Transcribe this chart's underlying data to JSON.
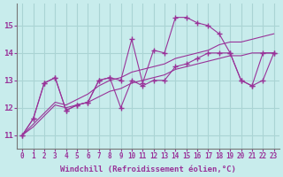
{
  "xlabel": "Windchill (Refroidissement éolien,°C)",
  "ylabel": "",
  "background_color": "#c8ecec",
  "grid_color": "#aad4d4",
  "line_color": "#993399",
  "x_hours": [
    0,
    1,
    2,
    3,
    4,
    5,
    6,
    7,
    8,
    9,
    10,
    11,
    12,
    13,
    14,
    15,
    16,
    17,
    18,
    19,
    20,
    21,
    22,
    23
  ],
  "series_main": [
    11.0,
    11.6,
    12.9,
    13.1,
    11.9,
    12.1,
    12.2,
    13.0,
    13.1,
    13.0,
    14.5,
    12.9,
    14.1,
    14.0,
    15.3,
    15.3,
    15.1,
    15.0,
    14.7,
    14.0,
    13.0,
    12.8,
    14.0,
    14.0
  ],
  "series_low": [
    11.0,
    11.6,
    12.9,
    13.1,
    11.9,
    12.1,
    12.2,
    13.0,
    13.1,
    12.0,
    13.0,
    12.8,
    13.0,
    13.0,
    13.5,
    13.6,
    13.8,
    14.0,
    14.0,
    14.0,
    13.0,
    12.8,
    13.0,
    14.0
  ],
  "series_trend1": [
    11.0,
    11.3,
    11.7,
    12.1,
    12.0,
    12.1,
    12.2,
    12.4,
    12.6,
    12.7,
    12.9,
    13.0,
    13.1,
    13.2,
    13.4,
    13.5,
    13.6,
    13.7,
    13.8,
    13.9,
    13.9,
    14.0,
    14.0,
    14.0
  ],
  "series_trend2": [
    11.0,
    11.4,
    11.8,
    12.2,
    12.1,
    12.3,
    12.5,
    12.8,
    13.0,
    13.1,
    13.3,
    13.4,
    13.5,
    13.6,
    13.8,
    13.9,
    14.0,
    14.1,
    14.3,
    14.4,
    14.4,
    14.5,
    14.6,
    14.7
  ],
  "ylim": [
    10.5,
    15.8
  ],
  "yticks": [
    11,
    12,
    13,
    14,
    15
  ],
  "xlim": [
    -0.5,
    23.5
  ],
  "xticks": [
    0,
    1,
    2,
    3,
    4,
    5,
    6,
    7,
    8,
    9,
    10,
    11,
    12,
    13,
    14,
    15,
    16,
    17,
    18,
    19,
    20,
    21,
    22,
    23
  ],
  "font_size": 6.5,
  "label_font_size": 6.5
}
